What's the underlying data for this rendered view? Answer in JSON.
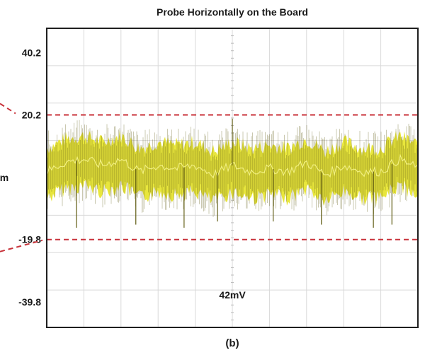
{
  "chart_data": {
    "type": "line",
    "title": "Probe Horizontally on the Board",
    "caption": "(b)",
    "ylabel_fragment": "m",
    "ylim": [
      -48,
      48
    ],
    "y_ticks": [
      40.2,
      20.2,
      -19.8,
      -39.8
    ],
    "y_tick_labels": [
      "40.2",
      "20.2",
      "-19.8",
      "-39.8"
    ],
    "grid": true,
    "threshold_lines": [
      20.2,
      -19.8
    ],
    "annotation": "42mV",
    "series": [
      {
        "x": [
          0,
          0.5,
          1,
          1.5,
          2,
          2.5,
          3,
          3.5,
          4,
          4.5,
          5,
          5.5,
          6,
          6.5,
          7,
          7.5,
          8,
          8.5,
          9,
          9.5,
          10
        ],
        "y": [
          2,
          5,
          6,
          4,
          6,
          2,
          4,
          3,
          4,
          1,
          4,
          2,
          3,
          2,
          5,
          1,
          4,
          2,
          2,
          6,
          3
        ],
        "spikes": [
          {
            "x": 0.8,
            "y": -16
          },
          {
            "x": 2.4,
            "y": -15
          },
          {
            "x": 3.7,
            "y": -16
          },
          {
            "x": 4.6,
            "y": -14
          },
          {
            "x": 5.0,
            "y": 19
          },
          {
            "x": 6.1,
            "y": -14
          },
          {
            "x": 7.4,
            "y": -15
          },
          {
            "x": 8.8,
            "y": -16
          },
          {
            "x": 9.3,
            "y": -15
          }
        ]
      }
    ],
    "colors": {
      "trace_fill": "#e8e63c",
      "trace_dark": "#5e5a10",
      "threshold": "#c8323a",
      "grid": "#d9d9d9",
      "frame": "#1f1f1f"
    }
  }
}
